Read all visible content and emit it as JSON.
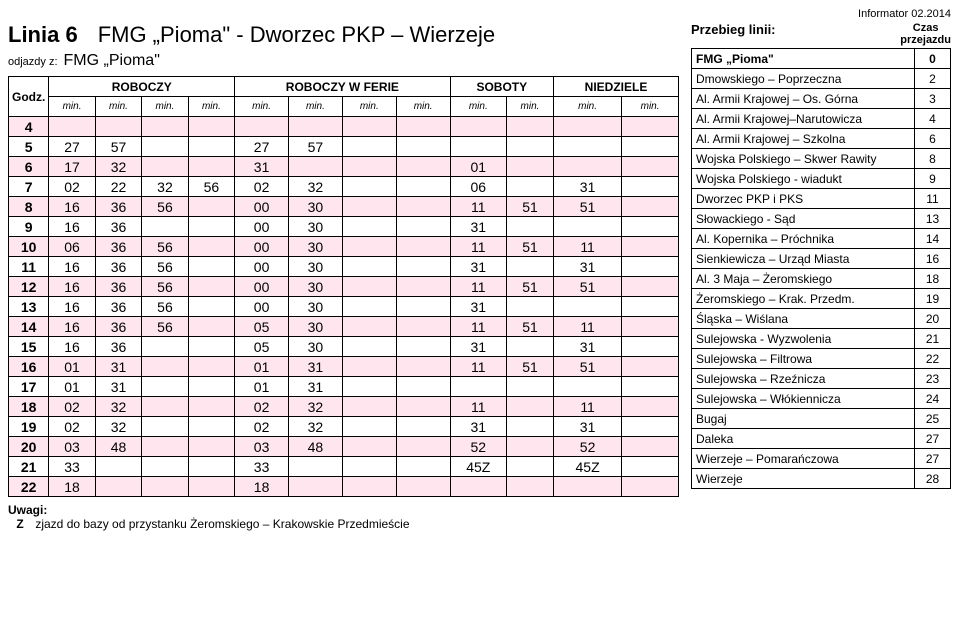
{
  "meta": {
    "informator": "Informator 02.2014"
  },
  "header": {
    "line_label": "Linia 6",
    "route_title": "FMG „Pioma\" - Dworzec PKP – Wierzeje",
    "depart_label": "odjazdy z:",
    "depart_stop": "FMG „Pioma\""
  },
  "timetable": {
    "col_groups": [
      {
        "label": "ROBOCZY",
        "span": 4
      },
      {
        "label": "ROBOCZY W FERIE",
        "span": 4
      },
      {
        "label": "SOBOTY",
        "span": 2
      },
      {
        "label": "NIEDZIELE",
        "span": 2
      }
    ],
    "godz_label": "Godz.",
    "min_label": "min.",
    "rows": [
      {
        "h": "4",
        "shade": true,
        "c": [
          "",
          "",
          "",
          "",
          "",
          "",
          "",
          "",
          "",
          "",
          "",
          ""
        ]
      },
      {
        "h": "5",
        "shade": false,
        "c": [
          "27",
          "57",
          "",
          "",
          "27",
          "57",
          "",
          "",
          "",
          "",
          "",
          ""
        ]
      },
      {
        "h": "6",
        "shade": true,
        "c": [
          "17",
          "32",
          "",
          "",
          "31",
          "",
          "",
          "",
          "01",
          "",
          "",
          ""
        ]
      },
      {
        "h": "7",
        "shade": false,
        "c": [
          "02",
          "22",
          "32",
          "56",
          "02",
          "32",
          "",
          "",
          "06",
          "",
          "31",
          ""
        ]
      },
      {
        "h": "8",
        "shade": true,
        "c": [
          "16",
          "36",
          "56",
          "",
          "00",
          "30",
          "",
          "",
          "11",
          "51",
          "51",
          ""
        ]
      },
      {
        "h": "9",
        "shade": false,
        "c": [
          "16",
          "36",
          "",
          "",
          "00",
          "30",
          "",
          "",
          "31",
          "",
          "",
          ""
        ]
      },
      {
        "h": "10",
        "shade": true,
        "c": [
          "06",
          "36",
          "56",
          "",
          "00",
          "30",
          "",
          "",
          "11",
          "51",
          "11",
          ""
        ]
      },
      {
        "h": "11",
        "shade": false,
        "c": [
          "16",
          "36",
          "56",
          "",
          "00",
          "30",
          "",
          "",
          "31",
          "",
          "31",
          ""
        ]
      },
      {
        "h": "12",
        "shade": true,
        "c": [
          "16",
          "36",
          "56",
          "",
          "00",
          "30",
          "",
          "",
          "11",
          "51",
          "51",
          ""
        ]
      },
      {
        "h": "13",
        "shade": false,
        "c": [
          "16",
          "36",
          "56",
          "",
          "00",
          "30",
          "",
          "",
          "31",
          "",
          "",
          ""
        ]
      },
      {
        "h": "14",
        "shade": true,
        "c": [
          "16",
          "36",
          "56",
          "",
          "05",
          "30",
          "",
          "",
          "11",
          "51",
          "11",
          ""
        ]
      },
      {
        "h": "15",
        "shade": false,
        "c": [
          "16",
          "36",
          "",
          "",
          "05",
          "30",
          "",
          "",
          "31",
          "",
          "31",
          ""
        ]
      },
      {
        "h": "16",
        "shade": true,
        "c": [
          "01",
          "31",
          "",
          "",
          "01",
          "31",
          "",
          "",
          "11",
          "51",
          "51",
          ""
        ]
      },
      {
        "h": "17",
        "shade": false,
        "c": [
          "01",
          "31",
          "",
          "",
          "01",
          "31",
          "",
          "",
          "",
          "",
          "",
          ""
        ]
      },
      {
        "h": "18",
        "shade": true,
        "c": [
          "02",
          "32",
          "",
          "",
          "02",
          "32",
          "",
          "",
          "11",
          "",
          "11",
          ""
        ]
      },
      {
        "h": "19",
        "shade": false,
        "c": [
          "02",
          "32",
          "",
          "",
          "02",
          "32",
          "",
          "",
          "31",
          "",
          "31",
          ""
        ]
      },
      {
        "h": "20",
        "shade": true,
        "c": [
          "03",
          "48",
          "",
          "",
          "03",
          "48",
          "",
          "",
          "52",
          "",
          "52",
          ""
        ]
      },
      {
        "h": "21",
        "shade": false,
        "c": [
          "33",
          "",
          "",
          "",
          "33",
          "",
          "",
          "",
          "45Z",
          "",
          "45Z",
          ""
        ]
      },
      {
        "h": "22",
        "shade": true,
        "c": [
          "18",
          "",
          "",
          "",
          "18",
          "",
          "",
          "",
          "",
          "",
          "",
          ""
        ]
      }
    ]
  },
  "notes": {
    "label": "Uwagi:",
    "items": [
      {
        "code": "Z",
        "text": "zjazd do bazy od przystanku Żeromskiego – Krakowskie Przedmieście"
      }
    ]
  },
  "route_panel": {
    "przebieg_label": "Przebieg linii:",
    "czas_label_1": "Czas",
    "czas_label_2": "przejazdu",
    "stops": [
      {
        "name": "FMG „Pioma\"",
        "t": "0",
        "bold": true
      },
      {
        "name": "Dmowskiego – Poprzeczna",
        "t": "2"
      },
      {
        "name": "Al. Armii Krajowej – Os. Górna",
        "t": "3"
      },
      {
        "name": "Al. Armii Krajowej–Narutowicza",
        "t": "4"
      },
      {
        "name": "Al. Armii Krajowej – Szkolna",
        "t": "6"
      },
      {
        "name": "Wojska Polskiego – Skwer Rawity",
        "t": "8"
      },
      {
        "name": "Wojska Polskiego - wiadukt",
        "t": "9"
      },
      {
        "name": "Dworzec PKP i PKS",
        "t": "11"
      },
      {
        "name": "Słowackiego - Sąd",
        "t": "13"
      },
      {
        "name": "Al. Kopernika – Próchnika",
        "t": "14"
      },
      {
        "name": "Sienkiewicza – Urząd Miasta",
        "t": "16"
      },
      {
        "name": "Al. 3 Maja – Żeromskiego",
        "t": "18"
      },
      {
        "name": "Żeromskiego – Krak. Przedm.",
        "t": "19"
      },
      {
        "name": "Śląska – Wiślana",
        "t": "20"
      },
      {
        "name": "Sulejowska - Wyzwolenia",
        "t": "21"
      },
      {
        "name": "Sulejowska – Filtrowa",
        "t": "22"
      },
      {
        "name": "Sulejowska – Rzeźnicza",
        "t": "23"
      },
      {
        "name": "Sulejowska – Włókiennicza",
        "t": "24"
      },
      {
        "name": "Bugaj",
        "t": "25"
      },
      {
        "name": "Daleka",
        "t": "27"
      },
      {
        "name": "Wierzeje – Pomarańczowa",
        "t": "27"
      },
      {
        "name": "Wierzeje",
        "t": "28"
      }
    ]
  }
}
